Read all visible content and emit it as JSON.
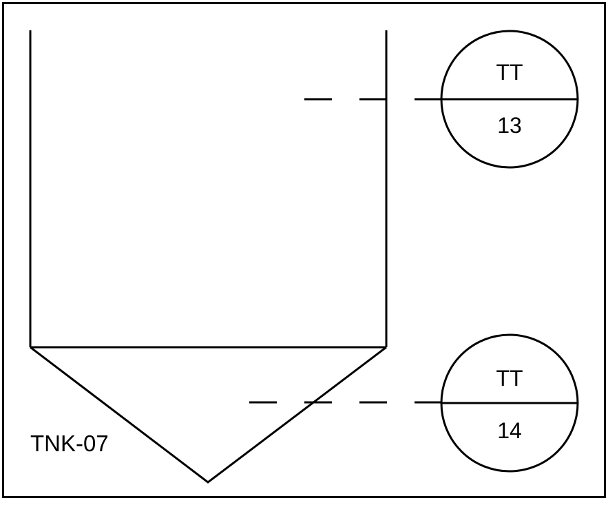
{
  "tank": {
    "tag": "TNK-07"
  },
  "instruments": [
    {
      "function": "TT",
      "number": "13"
    },
    {
      "function": "TT",
      "number": "14"
    }
  ],
  "colors": {
    "line": "#000000",
    "background": "#ffffff"
  }
}
